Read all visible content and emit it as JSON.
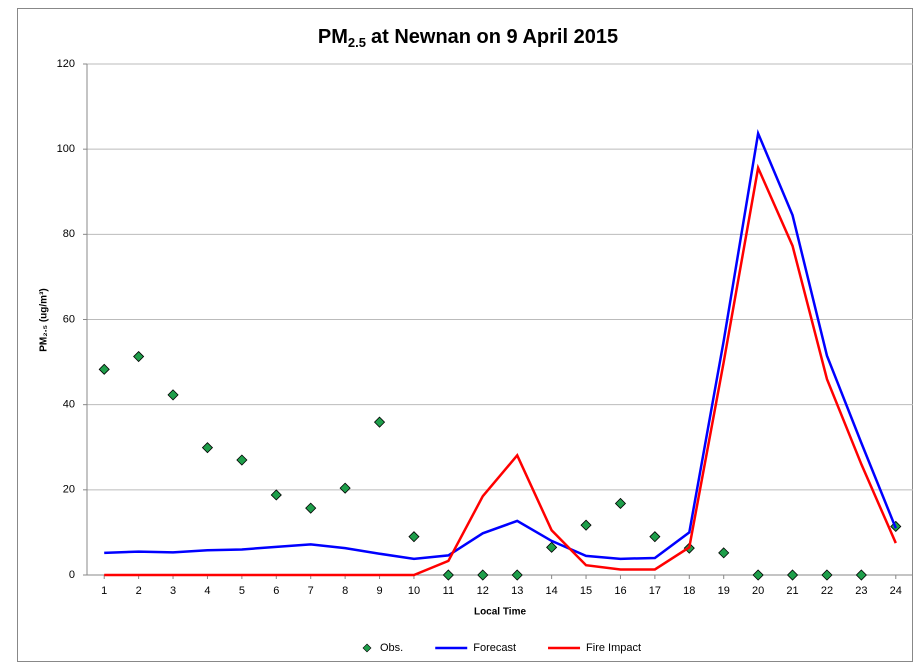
{
  "chart_data": {
    "type": "line",
    "title": {
      "main": "PM",
      "sub": "2.5",
      "rest": "at Newnan on 9 April 2015"
    },
    "ylabel": "PM₂.₅ (ug/m³)",
    "xlabel": "Local Time",
    "x": [
      1,
      2,
      3,
      4,
      5,
      6,
      7,
      8,
      9,
      10,
      11,
      12,
      13,
      14,
      15,
      16,
      17,
      18,
      19,
      20,
      21,
      22,
      23,
      24
    ],
    "xlim": [
      0.5,
      24.5
    ],
    "xticks": [
      1,
      2,
      3,
      4,
      5,
      6,
      7,
      8,
      9,
      10,
      11,
      12,
      13,
      14,
      15,
      16,
      17,
      18,
      19,
      20,
      21,
      22,
      23,
      24
    ],
    "ylim": [
      0,
      120
    ],
    "yticks": [
      0,
      20,
      40,
      60,
      80,
      100,
      120
    ],
    "grid": true,
    "legend": "bottom",
    "series": [
      {
        "name": "Obs.",
        "kind": "scatter",
        "color": "#1e9e4a",
        "values": [
          48.3,
          51.3,
          42.3,
          29.9,
          27.0,
          18.8,
          15.7,
          20.4,
          35.9,
          9.0,
          0,
          0,
          0,
          6.5,
          11.7,
          16.8,
          9.0,
          6.3,
          5.2,
          0,
          0,
          0,
          0,
          11.4
        ]
      },
      {
        "name": "Forecast",
        "kind": "line",
        "color": "#0000ff",
        "values": [
          5.2,
          5.5,
          5.3,
          5.8,
          6.0,
          6.6,
          7.2,
          6.3,
          5.0,
          3.8,
          4.6,
          9.8,
          12.7,
          8.0,
          4.5,
          3.8,
          4.0,
          10.0,
          55,
          103.7,
          84.5,
          51.5,
          31,
          11
        ]
      },
      {
        "name": "Fire Impact",
        "kind": "line",
        "color": "#ff0000",
        "values": [
          0,
          0,
          0,
          0,
          0,
          0,
          0,
          0,
          0,
          0,
          3.3,
          18.5,
          28.1,
          10.5,
          2.3,
          1.3,
          1.3,
          6.5,
          50,
          95.6,
          77.3,
          46,
          26,
          7.5
        ]
      }
    ]
  }
}
